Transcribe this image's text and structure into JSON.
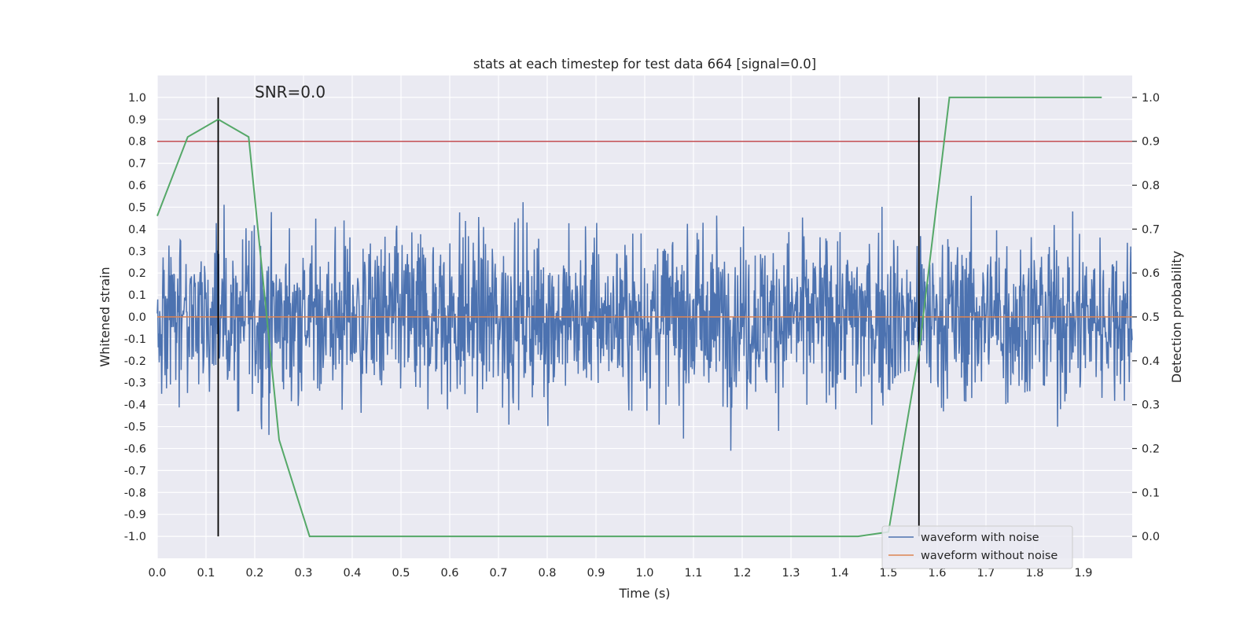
{
  "chart_data": {
    "type": "line",
    "title": "stats at each timestep for test data 664 [signal=0.0]",
    "xlabel": "Time (s)",
    "ylabel": "Whitened strain",
    "y2label": "Detection probability",
    "annotation": "SNR=0.0",
    "xlim": [
      0.0,
      2.0
    ],
    "ylim": [
      -1.1,
      1.1
    ],
    "y2lim": [
      -0.05,
      1.05
    ],
    "xticks": [
      "0.0",
      "0.1",
      "0.2",
      "0.3",
      "0.4",
      "0.5",
      "0.6",
      "0.7",
      "0.8",
      "0.9",
      "1.0",
      "1.1",
      "1.2",
      "1.3",
      "1.4",
      "1.5",
      "1.6",
      "1.7",
      "1.8",
      "1.9"
    ],
    "yticks": [
      "1.0",
      "0.9",
      "0.8",
      "0.7",
      "0.6",
      "0.5",
      "0.4",
      "0.3",
      "0.2",
      "0.1",
      "0.0",
      "-0.1",
      "-0.2",
      "-0.3",
      "-0.4",
      "-0.5",
      "-0.6",
      "-0.7",
      "-0.8",
      "-0.9",
      "-1.0"
    ],
    "y2ticks": [
      "1.0",
      "0.9",
      "0.8",
      "0.7",
      "0.6",
      "0.5",
      "0.4",
      "0.3",
      "0.2",
      "0.1",
      "0.0"
    ],
    "grid": true,
    "legend_position": "lower-right",
    "series": [
      {
        "name": "waveform with noise",
        "axis": "left",
        "color": "#4c72b0",
        "style": "dense noise, amplitude within [-1, 1]",
        "values": []
      },
      {
        "name": "waveform without noise",
        "axis": "left",
        "color": "#dd8452",
        "x": [
          0.0,
          2.0
        ],
        "y": [
          0.0,
          0.0
        ]
      },
      {
        "axis": "right",
        "color": "#55a868",
        "x": [
          0.0,
          0.0625,
          0.125,
          0.1875,
          0.25,
          0.3125,
          0.375,
          0.4375,
          0.5,
          0.5625,
          0.625,
          0.6875,
          0.75,
          0.8125,
          0.875,
          0.9375,
          1.0,
          1.0625,
          1.125,
          1.1875,
          1.25,
          1.3125,
          1.375,
          1.4375,
          1.5,
          1.5625,
          1.625,
          1.6875,
          1.75,
          1.8125,
          1.875,
          1.9375
        ],
        "y": [
          0.73,
          0.91,
          0.95,
          0.91,
          0.22,
          0.0,
          0.0,
          0.0,
          0.0,
          0.0,
          0.0,
          0.0,
          0.0,
          0.0,
          0.0,
          0.0,
          0.0,
          0.0,
          0.0,
          0.0,
          0.0,
          0.0,
          0.0,
          0.0,
          0.01,
          0.42,
          1.0,
          1.0,
          1.0,
          1.0,
          1.0,
          1.0
        ]
      }
    ],
    "threshold_line": {
      "axis": "left",
      "y": 0.8,
      "color": "#c44e52"
    },
    "vertical_lines": [
      {
        "x": 0.125,
        "color": "#000000"
      },
      {
        "x": 1.5625,
        "color": "#000000"
      }
    ]
  }
}
